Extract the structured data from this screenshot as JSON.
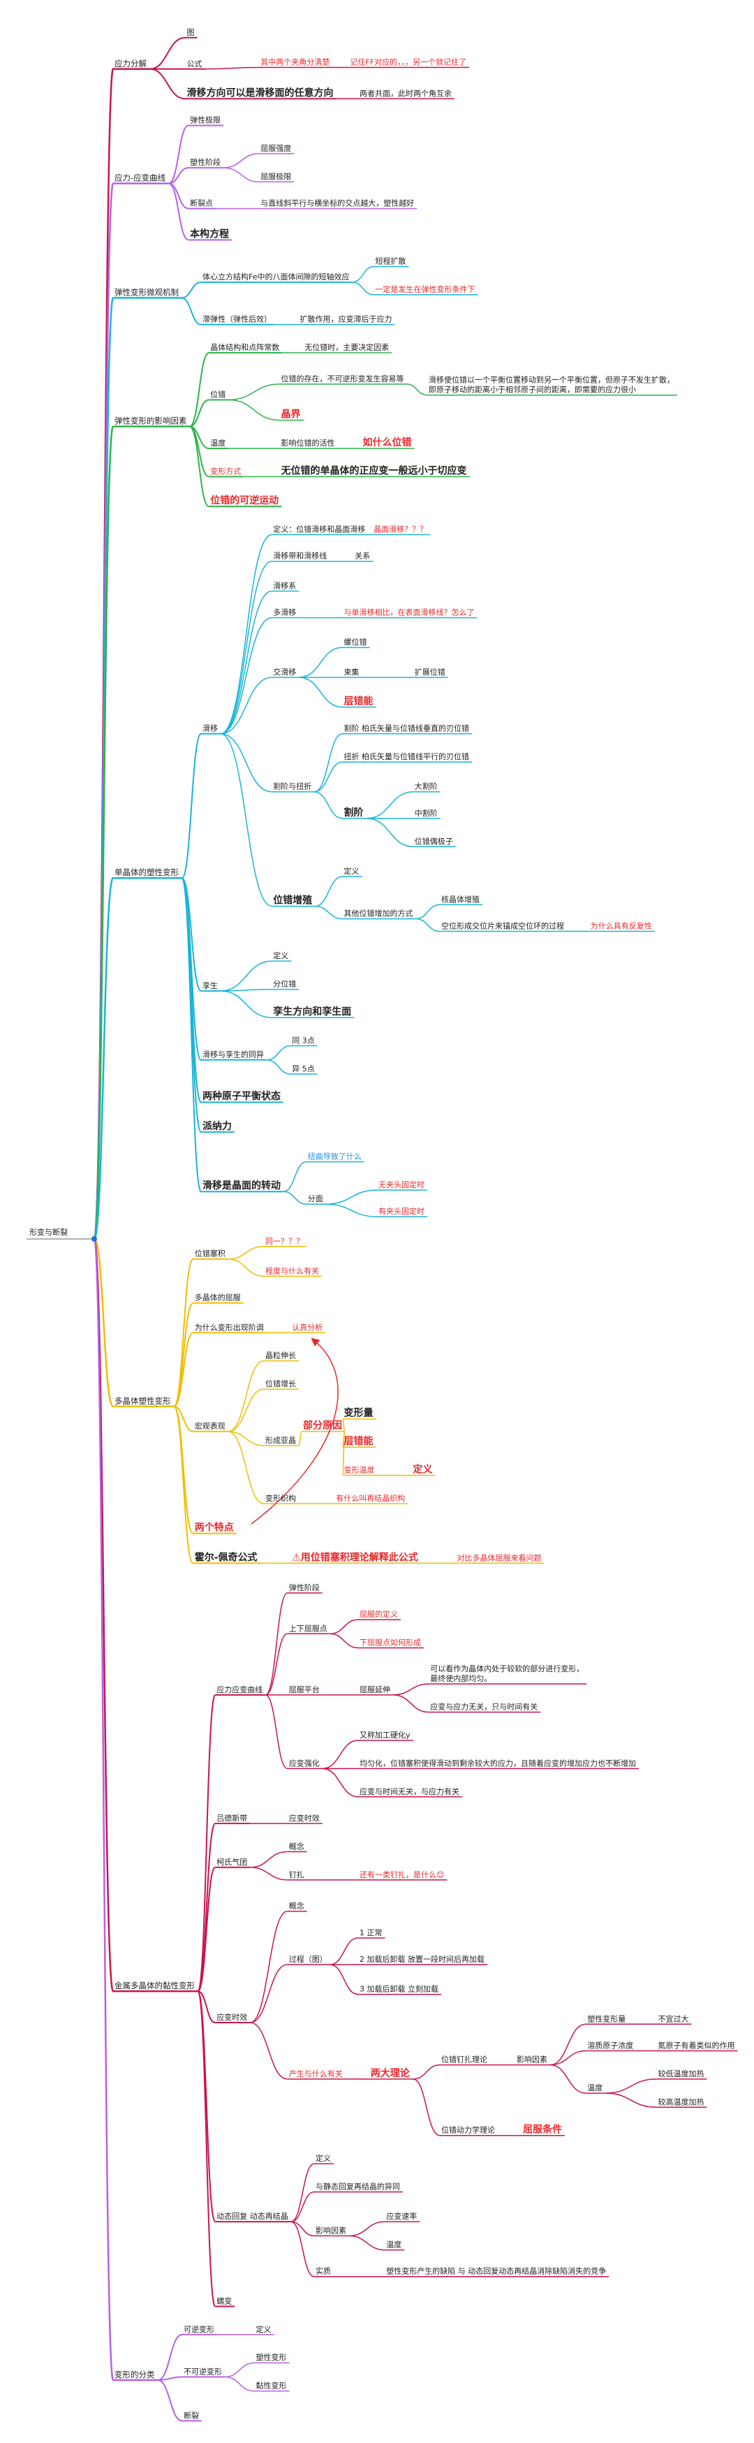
{
  "root": "形变与断裂",
  "branches": [
    {
      "label": "应力分解",
      "color": "#c8154a",
      "children": [
        {
          "label": "图"
        },
        {
          "label": "公式",
          "children": [
            {
              "label": "其中两个夹角分清楚",
              "children": [
                {
                  "label": "记住FF对应的，，，另一个就记住了"
                }
              ]
            }
          ]
        },
        {
          "label": "滑移方向可以是滑移面的任意方向",
          "children": [
            {
              "label": "两者共面，此时两个角互余"
            }
          ]
        }
      ]
    },
    {
      "label": "应力-应变曲线",
      "color": "#b760e6",
      "children": [
        {
          "label": "弹性极限"
        },
        {
          "label": "塑性阶段",
          "children": [
            {
              "label": "屈服强度"
            },
            {
              "label": "屈服极限"
            }
          ]
        },
        {
          "label": "断裂点",
          "children": [
            {
              "label": "与直线斜平行与横坐标的交点越大，塑性越好"
            }
          ]
        },
        {
          "label": "本构方程"
        }
      ]
    },
    {
      "label": "弹性变形微观机制",
      "color": "#1ab4d8",
      "children": [
        {
          "label": "体心立方结构Fe中的八面体间隙的短轴效应",
          "children": [
            {
              "label": "短程扩散"
            },
            {
              "label": "一定是发生在弹性变形条件下"
            }
          ]
        },
        {
          "label": "滞弹性（弹性后效）",
          "children": [
            {
              "label": "扩散作用，应变滞后于应力"
            }
          ]
        }
      ]
    },
    {
      "label": "弹性变形的影响因素",
      "color": "#2db34a",
      "children": [
        {
          "label": "晶体结构和点阵常数",
          "children": [
            {
              "label": "无位错时，主要决定因素"
            }
          ]
        },
        {
          "label": "位错",
          "children": [
            {
              "label": "位错的存在，不可逆形变发生容易等",
              "children": [
                {
                  "label": [
                    "滑移使位错以一个平衡位置移动到另一个平衡位置，但原子不发生扩散，",
                    "即原子移动的距离小于相邻原子间的距离，即需要的应力很小"
                  ]
                }
              ]
            },
            {
              "label": "晶界"
            }
          ]
        },
        {
          "label": "温度",
          "children": [
            {
              "label": "影响位错的活性",
              "children": [
                {
                  "label": "如什么位错"
                }
              ]
            }
          ]
        },
        {
          "label": "变形方式",
          "children": [
            {
              "label": "无位错的单晶体的正应变一般远小于切应变"
            }
          ]
        },
        {
          "label": "位错的可逆运动"
        }
      ]
    },
    {
      "label": "单晶体的塑性变形",
      "color": "#1ab4d8",
      "children": [
        {
          "label": "滑移",
          "children": [
            {
              "label": "定义：位错滑移和晶面滑移",
              "children": [
                {
                  "label": "晶面滑移？？？"
                }
              ]
            },
            {
              "label": "滑移带和滑移线",
              "children": [
                {
                  "label": "关系"
                }
              ]
            },
            {
              "label": "滑移系"
            },
            {
              "label": "多滑移",
              "children": [
                {
                  "label": "与单滑移相比，在表面滑移线？怎么了"
                }
              ]
            },
            {
              "label": "交滑移",
              "children": [
                {
                  "label": "螺位错"
                },
                {
                  "label": "束集",
                  "children": [
                    {
                      "label": "扩展位错"
                    }
                  ]
                },
                {
                  "label": "层错能"
                }
              ]
            },
            {
              "label": "割阶与扭折",
              "children": [
                {
                  "label": "割阶 柏氏矢量与位错线垂直的刃位错"
                },
                {
                  "label": "扭折 柏氏矢量与位错线平行的刃位错"
                },
                {
                  "label": "割阶",
                  "children": [
                    {
                      "label": "大割阶"
                    },
                    {
                      "label": "中割阶"
                    },
                    {
                      "label": "位错偶极子"
                    }
                  ]
                }
              ]
            },
            {
              "label": "位错增殖",
              "children": [
                {
                  "label": "定义"
                },
                {
                  "label": "其他位错增加的方式",
                  "children": [
                    {
                      "label": "核晶体增殖"
                    },
                    {
                      "label": "空位形成交位片来锚成空位环的过程",
                      "children": [
                        {
                          "label": "为什么具有反复性"
                        }
                      ]
                    }
                  ]
                }
              ]
            }
          ]
        },
        {
          "label": "孪生",
          "children": [
            {
              "label": "定义"
            },
            {
              "label": "分位错"
            },
            {
              "label": "孪生方向和孪生面"
            }
          ]
        },
        {
          "label": "滑移与孪生的同异",
          "children": [
            {
              "label": "同 3点"
            },
            {
              "label": "异 5点"
            }
          ]
        },
        {
          "label": "两种原子平衡状态"
        },
        {
          "label": "派纳力"
        },
        {
          "label": "滑移是晶面的转动",
          "children": [
            {
              "label": "纽曲导致了什么"
            },
            {
              "label": "分面",
              "children": [
                {
                  "label": "无夹头固定时"
                },
                {
                  "label": "有夹头固定时"
                }
              ]
            }
          ]
        }
      ]
    },
    {
      "label": "多晶体塑性变形",
      "color": "#f2bd00",
      "children": [
        {
          "label": "位错塞积",
          "children": [
            {
              "label": "同一？？？"
            },
            {
              "label": "程度与什么有关"
            }
          ]
        },
        {
          "label": "多晶体的屈服"
        },
        {
          "label": "为什么变形出现阶调",
          "children": [
            {
              "label": "认真分析"
            }
          ]
        },
        {
          "label": "宏观表现",
          "children": [
            {
              "label": "晶粒伸长"
            },
            {
              "label": "位错增长"
            },
            {
              "label": "形成亚晶",
              "children": [
                {
                  "label": "部分原因",
                  "children": [
                    {
                      "label": "变形量"
                    },
                    {
                      "label": "层错能"
                    },
                    {
                      "label": "变形温度",
                      "children": [
                        {
                          "label": "定义"
                        }
                      ]
                    }
                  ]
                }
              ]
            },
            {
              "label": "变形织构",
              "children": [
                {
                  "label": "有什么叫再结晶织构"
                }
              ]
            }
          ]
        },
        {
          "label": "两个特点"
        },
        {
          "label": "霍尔-佩奇公式",
          "children": [
            {
              "label": "⚠用位错塞积理论解释此公式",
              "children": [
                {
                  "label": "对比多晶体屈服来看问题"
                }
              ]
            }
          ]
        }
      ]
    },
    {
      "label": "金属多晶体的黏性变形",
      "color": "#c8154a",
      "children": [
        {
          "label": "应力应变曲线",
          "children": [
            {
              "label": "弹性阶段"
            },
            {
              "label": "上下屈服点",
              "children": [
                {
                  "label": "屈服的定义"
                },
                {
                  "label": "下屈服点如何形成"
                }
              ]
            },
            {
              "label": "屈服平台",
              "children": [
                {
                  "label": "屈服延伸",
                  "children": [
                    {
                      "label": [
                        "可以看作为晶体内处于较软的部分进行变形，",
                        "最终使内部均匀。"
                      ]
                    },
                    {
                      "label": "应变与应力无关，只与时间有关"
                    }
                  ]
                }
              ]
            },
            {
              "label": "应变强化",
              "children": [
                {
                  "label": "又称加工硬化y"
                },
                {
                  "label": "均匀化，位错塞积使得滑动到剩余较大的应力，且随着应变的增加应力也不断增加"
                },
                {
                  "label": "应变与时间无关，与应力有关"
                }
              ]
            }
          ]
        },
        {
          "label": "吕德斯带",
          "children": [
            {
              "label": "应变时效"
            }
          ]
        },
        {
          "label": "柯氏气团",
          "children": [
            {
              "label": "概念"
            },
            {
              "label": "钉扎",
              "children": [
                {
                  "label": "还有一类钉扎，是什么😊"
                }
              ]
            }
          ]
        },
        {
          "label": "应变时效",
          "children": [
            {
              "label": "概念"
            },
            {
              "label": "过程（图）",
              "children": [
                {
                  "label": "1 正常"
                },
                {
                  "label": "2 加载后卸载 放置一段时间后再加载"
                },
                {
                  "label": "3 加载后卸载 立刻加载"
                }
              ]
            },
            {
              "label": "产生与什么有关",
              "children": [
                {
                  "label": "两大理论",
                  "children": [
                    {
                      "label": "位错钉扎理论",
                      "children": [
                        {
                          "label": "影响因素",
                          "children": [
                            {
                              "label": "塑性变形量",
                              "children": [
                                {
                                  "label": "不宜过大"
                                }
                              ]
                            },
                            {
                              "label": "溶质原子浓度",
                              "children": [
                                {
                                  "label": "氮原子有着类似的作用"
                                }
                              ]
                            },
                            {
                              "label": "温度",
                              "children": [
                                {
                                  "label": "较低温度加热"
                                },
                                {
                                  "label": "较高温度加热"
                                }
                              ]
                            }
                          ]
                        }
                      ]
                    },
                    {
                      "label": "位错动力学理论",
                      "children": [
                        {
                          "label": "屈服条件"
                        }
                      ]
                    }
                  ]
                }
              ]
            }
          ]
        },
        {
          "label": "动态回复 动态再结晶",
          "children": [
            {
              "label": "定义"
            },
            {
              "label": "与静态回复再结晶的异同"
            },
            {
              "label": "影响因素",
              "children": [
                {
                  "label": "应变速率"
                },
                {
                  "label": "温度"
                }
              ]
            },
            {
              "label": "实质",
              "children": [
                {
                  "label": "塑性变形产生的缺陷 与 动态回复动态再结晶消除缺陷消失的竞争"
                }
              ]
            }
          ]
        },
        {
          "label": "蠕变"
        }
      ]
    },
    {
      "label": "变形的分类",
      "color": "#b760e6",
      "children": [
        {
          "label": "可逆变形",
          "children": [
            {
              "label": "定义"
            }
          ]
        },
        {
          "label": "不可逆变形",
          "children": [
            {
              "label": "塑性变形"
            },
            {
              "label": "黏性变形"
            }
          ]
        },
        {
          "label": "断裂"
        }
      ]
    }
  ]
}
